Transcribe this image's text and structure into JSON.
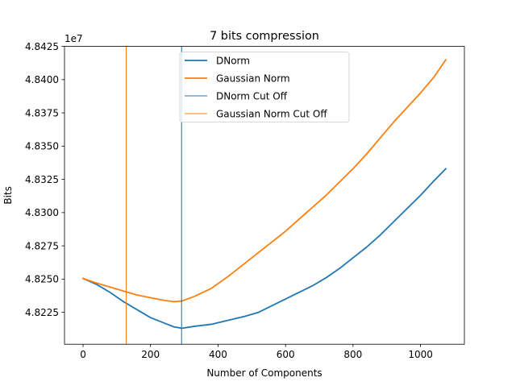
{
  "chart_data": {
    "type": "line",
    "title": "7 bits compression",
    "xlabel": "Number of Components",
    "ylabel": "Bits",
    "offset_text": "1e7",
    "xlim": [
      -55,
      1130
    ],
    "ylim": [
      48220100,
      48242500
    ],
    "xticks": [
      0,
      200,
      400,
      600,
      800,
      1000
    ],
    "xtick_labels": [
      "0",
      "200",
      "400",
      "600",
      "800",
      "1000"
    ],
    "yticks": [
      48222500,
      48225000,
      48227500,
      48230000,
      48232500,
      48235000,
      48237500,
      48240000,
      48242500
    ],
    "ytick_labels": [
      "4.8225",
      "4.8250",
      "4.8275",
      "4.8300",
      "4.8325",
      "4.8350",
      "4.8375",
      "4.8400",
      "4.8425"
    ],
    "grid": false,
    "legend_position": "top-center",
    "series": [
      {
        "name": "DNorm",
        "color": "#1f77b4",
        "x": [
          0,
          40,
          80,
          120,
          160,
          200,
          240,
          270,
          293,
          330,
          380,
          430,
          480,
          520,
          560,
          600,
          640,
          680,
          720,
          760,
          800,
          840,
          880,
          920,
          960,
          1000,
          1040,
          1075
        ],
        "y": [
          48225050,
          48224600,
          48224000,
          48223300,
          48222700,
          48222100,
          48221700,
          48221400,
          48221300,
          48221450,
          48221600,
          48221900,
          48222200,
          48222500,
          48223000,
          48223500,
          48224000,
          48224500,
          48225100,
          48225800,
          48226600,
          48227400,
          48228300,
          48229300,
          48230300,
          48231300,
          48232400,
          48233300
        ]
      },
      {
        "name": "Gaussian Norm",
        "color": "#ff7f0e",
        "x": [
          0,
          40,
          80,
          120,
          160,
          200,
          240,
          270,
          293,
          330,
          380,
          430,
          480,
          520,
          560,
          600,
          640,
          680,
          720,
          760,
          800,
          840,
          880,
          920,
          960,
          1000,
          1040,
          1075
        ],
        "y": [
          48225050,
          48224700,
          48224400,
          48224100,
          48223800,
          48223600,
          48223400,
          48223300,
          48223350,
          48223700,
          48224300,
          48225200,
          48226200,
          48227000,
          48227800,
          48228600,
          48229500,
          48230400,
          48231300,
          48232300,
          48233300,
          48234400,
          48235600,
          48236800,
          48237900,
          48239000,
          48240200,
          48241500
        ]
      },
      {
        "name": "DNorm Cut Off",
        "color": "#1f77b4",
        "type": "vline",
        "x": 292
      },
      {
        "name": "Gaussian Norm Cut Off",
        "color": "#ff7f0e",
        "type": "vline",
        "x": 128
      }
    ]
  }
}
